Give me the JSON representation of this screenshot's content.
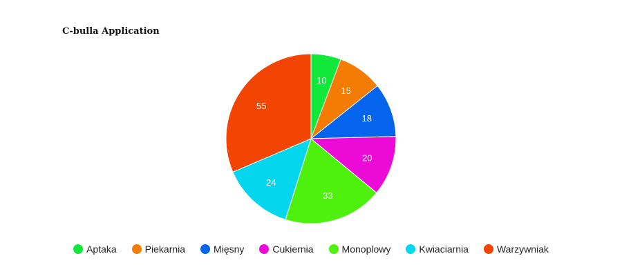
{
  "chart_data": {
    "type": "pie",
    "title": "C-bulla Application",
    "slices": [
      {
        "name": "Aptaka",
        "value": 10,
        "color": "#11e83a"
      },
      {
        "name": "Piekarnia",
        "value": 15,
        "color": "#f47c05"
      },
      {
        "name": "Mięsny",
        "value": 18,
        "color": "#0464ec"
      },
      {
        "name": "Cukiernia",
        "value": 20,
        "color": "#ec0ad6"
      },
      {
        "name": "Monoplowy",
        "value": 33,
        "color": "#4ef00e"
      },
      {
        "name": "Kwiaciarnia",
        "value": 24,
        "color": "#04d6ee"
      },
      {
        "name": "Warzywniak",
        "value": 55,
        "color": "#f24403"
      }
    ],
    "legend_position": "bottom"
  }
}
